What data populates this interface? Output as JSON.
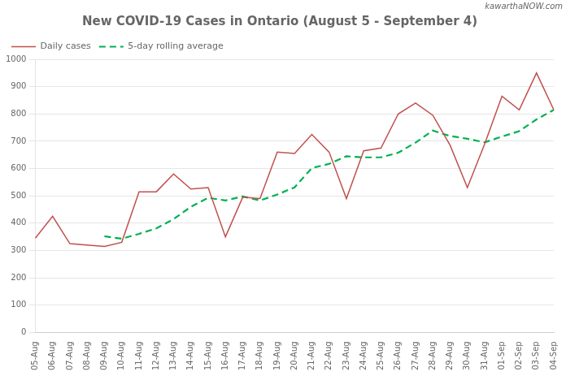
{
  "chart_data": {
    "type": "line",
    "title": "New COVID-19 Cases in Ontario (August 5 - September 4)",
    "annotations": [
      "kawarthaNOW.com"
    ],
    "categories": [
      "05-Aug",
      "06-Aug",
      "07-Aug",
      "08-Aug",
      "09-Aug",
      "10-Aug",
      "11-Aug",
      "12-Aug",
      "13-Aug",
      "14-Aug",
      "15-Aug",
      "16-Aug",
      "17-Aug",
      "18-Aug",
      "19-Aug",
      "20-Aug",
      "21-Aug",
      "22-Aug",
      "23-Aug",
      "24-Aug",
      "25-Aug",
      "26-Aug",
      "27-Aug",
      "28-Aug",
      "29-Aug",
      "30-Aug",
      "31-Aug",
      "01-Sep",
      "02-Sep",
      "03-Sep",
      "04-Sep"
    ],
    "series": [
      {
        "name": "Daily cases",
        "color": "#c0504d",
        "line_style": "solid",
        "values": [
          345,
          425,
          325,
          320,
          315,
          330,
          515,
          515,
          580,
          525,
          530,
          350,
          495,
          490,
          660,
          655,
          725,
          660,
          490,
          665,
          675,
          800,
          840,
          795,
          685,
          530,
          690,
          865,
          815,
          950,
          815
        ]
      },
      {
        "name": "5-day rolling average",
        "color": "#00b050",
        "line_style": "dashed",
        "values": [
          null,
          null,
          null,
          null,
          352,
          343,
          361,
          381,
          415,
          460,
          493,
          483,
          498,
          483,
          505,
          531,
          602,
          617,
          645,
          641,
          641,
          658,
          695,
          739,
          719,
          709,
          696,
          717,
          737,
          780,
          815
        ]
      }
    ],
    "ylim": [
      0,
      1000
    ],
    "yticks": [
      0,
      100,
      200,
      300,
      400,
      500,
      600,
      700,
      800,
      900,
      1000
    ],
    "grid": "y",
    "legend": "upper left"
  }
}
